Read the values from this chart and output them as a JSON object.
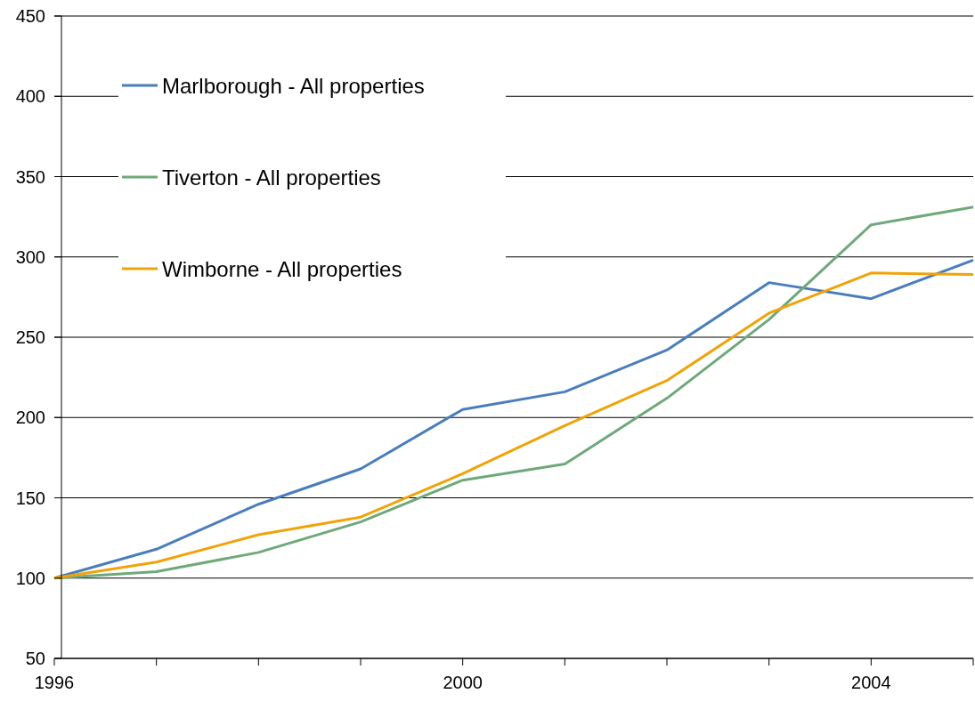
{
  "chart_data": {
    "type": "line",
    "x": [
      1996,
      1997,
      1998,
      1999,
      2000,
      2001,
      2002,
      2003,
      2004,
      2005
    ],
    "series": [
      {
        "name": "Marlborough - All properties",
        "color": "#4a7ebb",
        "values": [
          100,
          118,
          146,
          168,
          205,
          216,
          242,
          284,
          274,
          298
        ]
      },
      {
        "name": "Tiverton - All properties",
        "color": "#6fa87a",
        "values": [
          100,
          104,
          116,
          135,
          161,
          171,
          212,
          261,
          320,
          331
        ]
      },
      {
        "name": "Wimborne - All properties",
        "color": "#f0a30a",
        "values": [
          100,
          110,
          127,
          138,
          165,
          195,
          223,
          265,
          290,
          289
        ]
      }
    ],
    "xlim": [
      1996,
      2005
    ],
    "ylim": [
      50,
      450
    ],
    "xticks": [
      1996,
      {
        "value": 1997,
        "label": null
      },
      {
        "value": 1998,
        "label": null
      },
      {
        "value": 1999,
        "label": null
      },
      2000,
      {
        "value": 2001,
        "label": null
      },
      {
        "value": 2002,
        "label": null
      },
      {
        "value": 2003,
        "label": null
      },
      2004,
      {
        "value": 2005,
        "label": null
      }
    ],
    "yticks": [
      50,
      100,
      150,
      200,
      250,
      300,
      350,
      400,
      450
    ],
    "grid": "y",
    "legend": "top left",
    "marker": "none",
    "line_style": "solid"
  }
}
